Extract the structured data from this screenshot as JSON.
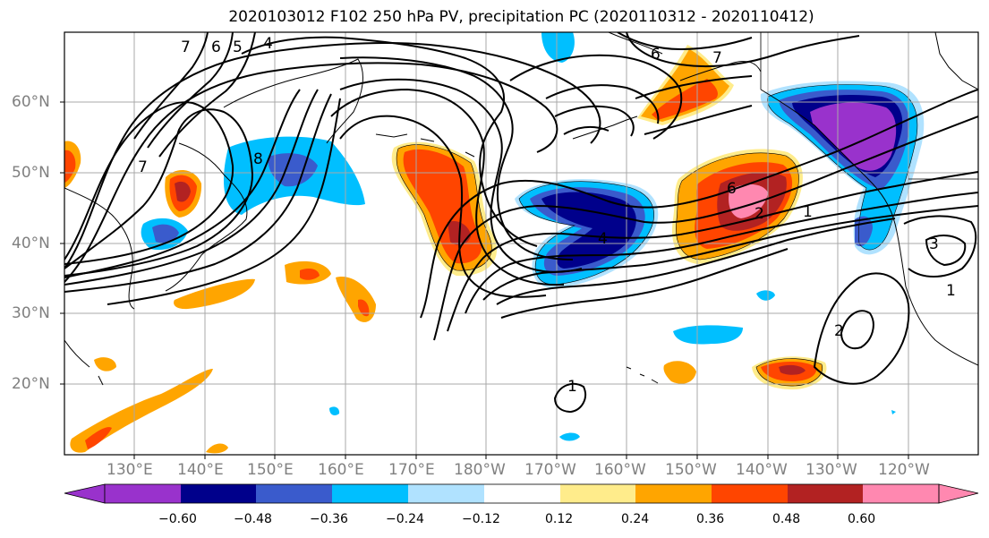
{
  "title": "2020103012 F102 250 hPa PV, precipitation PC (2020110312 - 2020110412)",
  "lat_labels": [
    "60°N",
    "50°N",
    "40°N",
    "30°N",
    "20°N"
  ],
  "lon_labels": [
    "130°E",
    "140°E",
    "150°E",
    "160°E",
    "170°E",
    "180°W",
    "170°W",
    "160°W",
    "150°W",
    "140°W",
    "130°W",
    "120°W"
  ],
  "contour_labels": [
    "7",
    "6",
    "5",
    "4",
    "8",
    "7",
    "6",
    "7",
    "6",
    "2",
    "1",
    "4",
    "3",
    "1",
    "2",
    "1"
  ],
  "colorbar": {
    "ticks": [
      "−0.60",
      "−0.48",
      "−0.36",
      "−0.24",
      "−0.12",
      "0.12",
      "0.24",
      "0.36",
      "0.48",
      "0.60"
    ],
    "colors": [
      "#9932CC",
      "#00008B",
      "#3A5BCC",
      "#00BFFF",
      "#B0E2FF",
      "#FFFFFF",
      "#FFEC8B",
      "#FFA500",
      "#FF4500",
      "#B22222",
      "#FF88B0"
    ]
  }
}
